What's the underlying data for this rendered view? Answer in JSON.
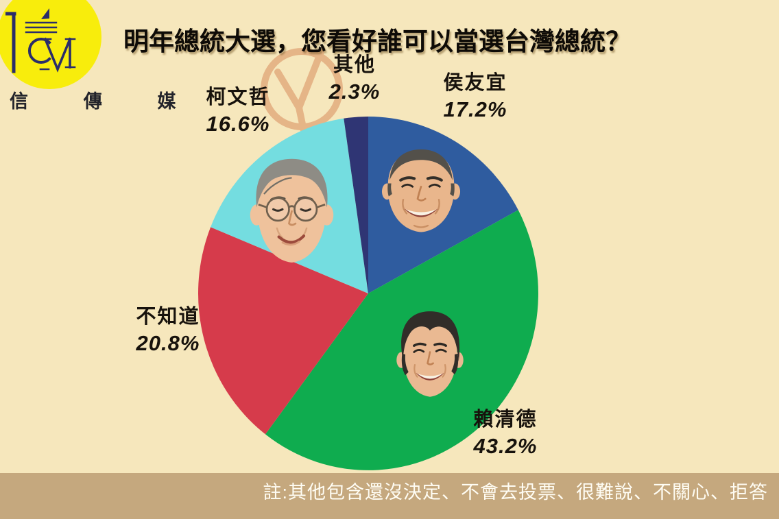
{
  "canvas": {
    "bg": "#F6E7BC"
  },
  "logo": {
    "brand": "信 傳 媒",
    "circle_color": "#F8ED0C",
    "mark_color": "#2A2D6A",
    "mark": "CM-monogram"
  },
  "title": {
    "text": "明年總統大選，您看好誰可以當選台灣總統？"
  },
  "watermark": {
    "symbol": "vote-stamp-circle-check",
    "color": "#E2A97B"
  },
  "chart_data": {
    "type": "pie",
    "title": "明年總統大選，您看好誰可以當選台灣總統？",
    "unit": "%",
    "direction": "clockwise",
    "start_angle_deg": 0,
    "legend_position": "labels-around-pie",
    "slices": [
      {
        "id": "hou-yu-ih",
        "label": "侯友宜",
        "value": 17.2,
        "display": "17.2%",
        "color": "#2F5C9F",
        "photo": "portrait of 侯友宜"
      },
      {
        "id": "lai-ching-te",
        "label": "賴清德",
        "value": 43.2,
        "display": "43.2%",
        "color": "#0FAC4F",
        "photo": "portrait of 賴清德"
      },
      {
        "id": "dont-know",
        "label": "不知道",
        "value": 20.8,
        "display": "20.8%",
        "color": "#D63B4B"
      },
      {
        "id": "ko-wen-je",
        "label": "柯文哲",
        "value": 16.6,
        "display": "16.6%",
        "color": "#74DDE0",
        "photo": "portrait of 柯文哲"
      },
      {
        "id": "other",
        "label": "其他",
        "value": 2.3,
        "display": "2.3%",
        "color": "#2F3574"
      }
    ]
  },
  "footer": {
    "note": "註:其他包含還沒決定、不會去投票、很難說、不關心、拒答",
    "bg": "#C5A87E"
  }
}
